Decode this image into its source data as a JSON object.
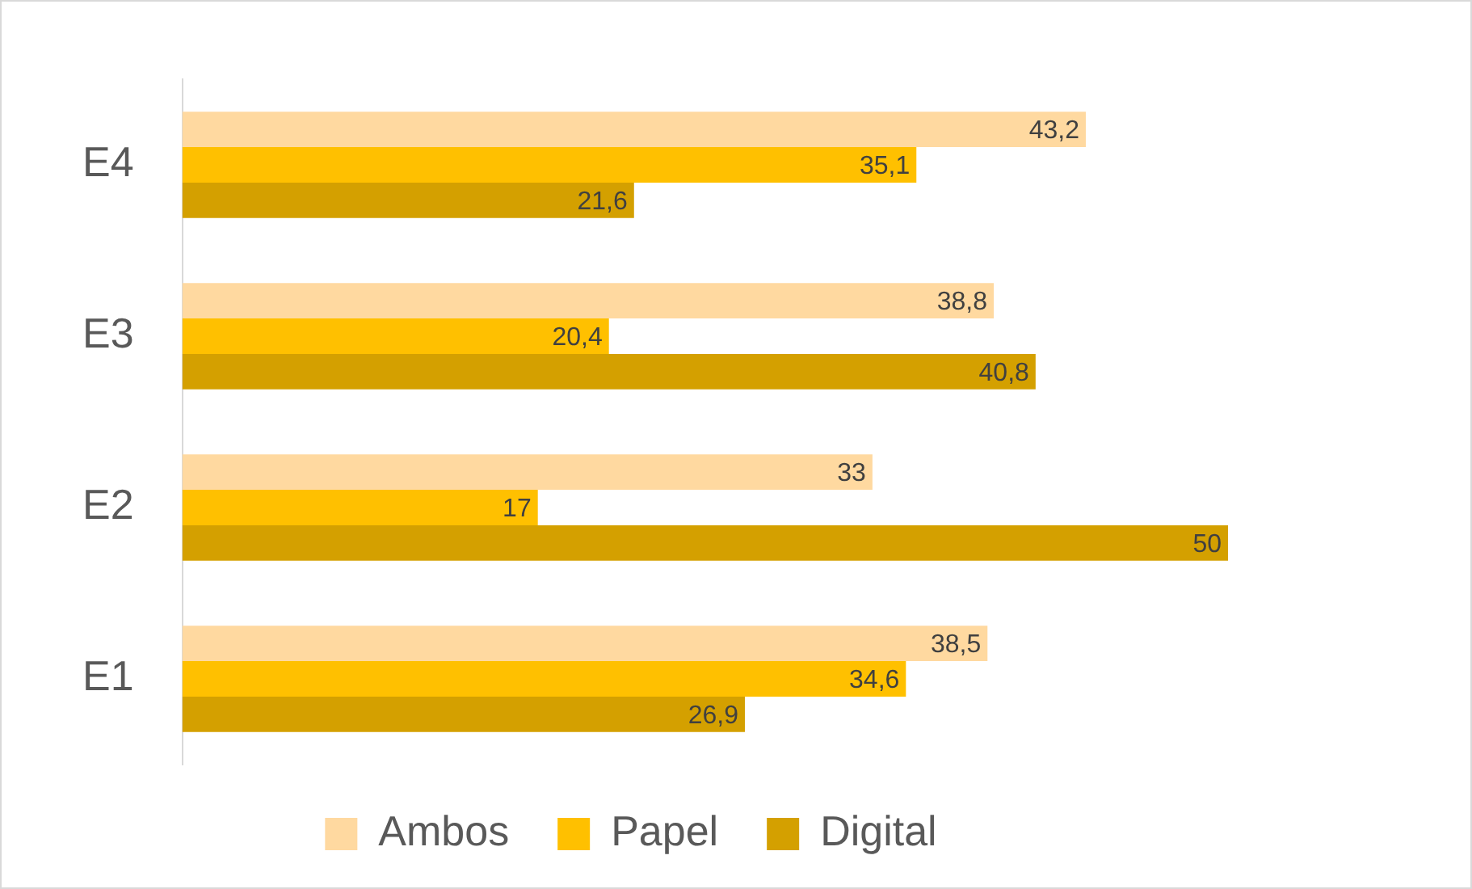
{
  "chart_data": {
    "type": "bar",
    "orientation": "horizontal",
    "categories": [
      "E4",
      "E3",
      "E2",
      "E1"
    ],
    "series": [
      {
        "name": "Ambos",
        "color": "#ffd9a0",
        "values": [
          43.2,
          38.8,
          33,
          38.5
        ],
        "value_labels": [
          "43,2",
          "38,8",
          "33",
          "38,5"
        ]
      },
      {
        "name": "Papel",
        "color": "#ffc000",
        "values": [
          35.1,
          20.4,
          17,
          34.6
        ],
        "value_labels": [
          "35,1",
          "20,4",
          "17",
          "34,6"
        ]
      },
      {
        "name": "Digital",
        "color": "#d4a000",
        "values": [
          21.6,
          40.8,
          50,
          26.9
        ],
        "value_labels": [
          "21,6",
          "40,8",
          "50",
          "26,9"
        ]
      }
    ],
    "tick_labels": "y",
    "legend": "bottom"
  }
}
